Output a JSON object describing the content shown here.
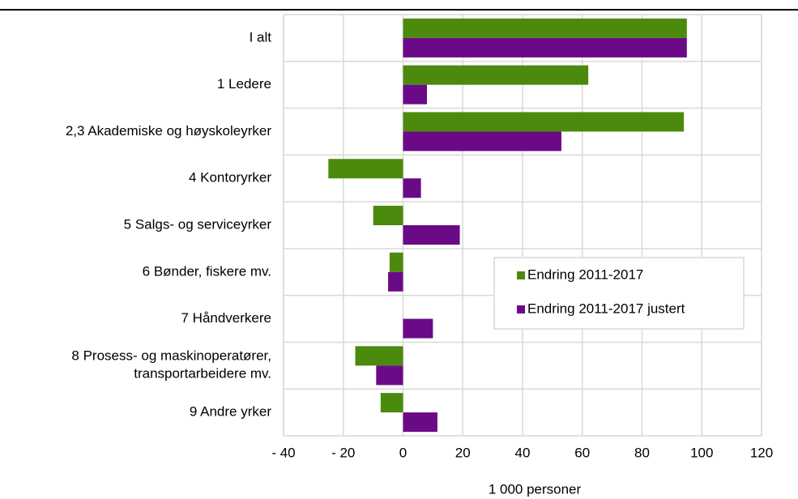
{
  "chart_data": {
    "type": "barh",
    "categories": [
      "I alt",
      "1 Ledere",
      "2,3 Akademiske og høyskoleyrker",
      "4 Kontoryrker",
      "5 Salgs- og serviceyrker",
      "6 Bønder, fiskere mv.",
      "7 Håndverkere",
      "8 Prosess- og maskinoperatører,\ntransportarbeidere mv.",
      "9 Andre yrker"
    ],
    "series": [
      {
        "name": "Endring 2011-2017",
        "color": "#4b8a0c",
        "values": [
          95,
          62,
          94,
          -25,
          -10,
          -4.5,
          0,
          -16,
          -7.5
        ]
      },
      {
        "name": "Endring 2011-2017 justert",
        "color": "#6b0a87",
        "values": [
          95,
          8,
          53,
          6,
          19,
          -5,
          10,
          -9,
          11.5
        ]
      }
    ],
    "xlabel": "1 000 personer",
    "xlim": [
      -40,
      120
    ],
    "xticks": [
      {
        "value": -40,
        "label": "- 40"
      },
      {
        "value": -20,
        "label": "- 20"
      },
      0,
      20,
      40,
      60,
      80,
      100,
      120
    ],
    "grid": true,
    "legend": "right"
  }
}
